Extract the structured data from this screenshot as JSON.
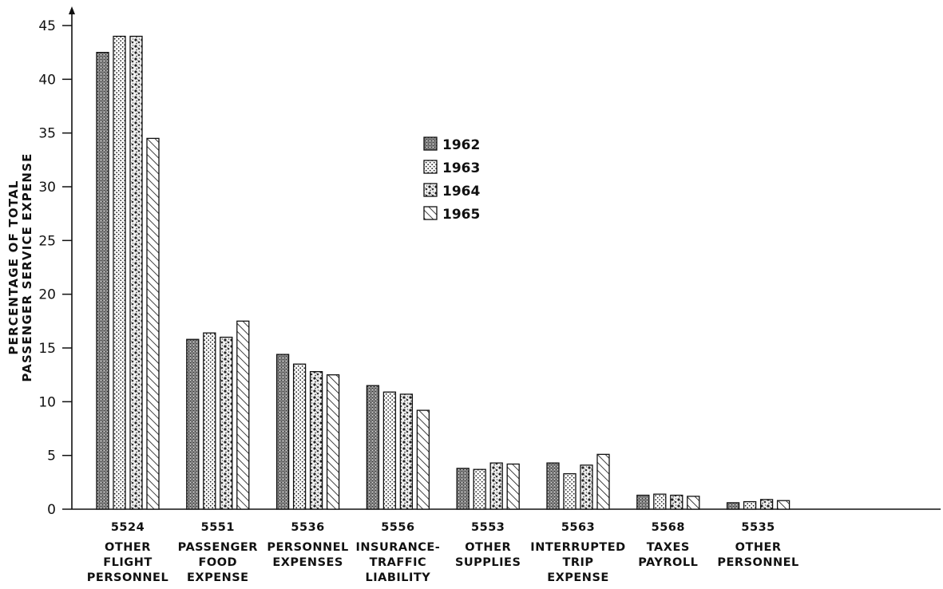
{
  "chart_data": {
    "type": "bar",
    "title": "",
    "xlabel": "",
    "ylabel": [
      "PERCENTAGE OF TOTAL",
      "PASSENGER SERVICE EXPENSE"
    ],
    "ylim": [
      0,
      45
    ],
    "yticks": [
      0,
      5,
      10,
      15,
      20,
      25,
      30,
      35,
      40,
      45
    ],
    "grid": false,
    "legend_position": "center",
    "categories": [
      {
        "code": "5524",
        "lines": [
          "OTHER",
          "FLIGHT",
          "PERSONNEL"
        ]
      },
      {
        "code": "5551",
        "lines": [
          "PASSENGER",
          "FOOD",
          "EXPENSE"
        ]
      },
      {
        "code": "5536",
        "lines": [
          "PERSONNEL",
          "EXPENSES"
        ]
      },
      {
        "code": "5556",
        "lines": [
          "INSURANCE-",
          "TRAFFIC",
          "LIABILITY"
        ]
      },
      {
        "code": "5553",
        "lines": [
          "OTHER",
          "SUPPLIES"
        ]
      },
      {
        "code": "5563",
        "lines": [
          "INTERRUPTED",
          "TRIP",
          "EXPENSE"
        ]
      },
      {
        "code": "5568",
        "lines": [
          "TAXES",
          "PAYROLL"
        ]
      },
      {
        "code": "5535",
        "lines": [
          "OTHER",
          "PERSONNEL"
        ]
      }
    ],
    "series": [
      {
        "name": "1962",
        "pattern": "dense-stipple",
        "values": [
          42.5,
          15.8,
          14.4,
          11.5,
          3.8,
          4.3,
          1.3,
          0.6
        ]
      },
      {
        "name": "1963",
        "pattern": "dots",
        "values": [
          44.0,
          16.4,
          13.5,
          10.9,
          3.7,
          3.3,
          1.4,
          0.7
        ]
      },
      {
        "name": "1964",
        "pattern": "mottled",
        "values": [
          44.0,
          16.0,
          12.8,
          10.7,
          4.3,
          4.1,
          1.3,
          0.9
        ]
      },
      {
        "name": "1965",
        "pattern": "diagonal-hatch",
        "values": [
          34.5,
          17.5,
          12.5,
          9.2,
          4.2,
          5.1,
          1.2,
          0.8
        ]
      }
    ]
  }
}
